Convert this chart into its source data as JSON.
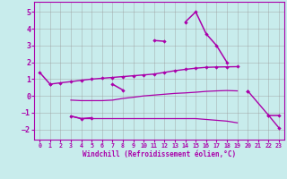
{
  "background_color": "#c8ecec",
  "line_color": "#aa00aa",
  "grid_color": "#999999",
  "xlabel": "Windchill (Refroidissement éolien,°C)",
  "xlim": [
    -0.5,
    23.5
  ],
  "ylim": [
    -2.6,
    5.6
  ],
  "yticks": [
    -2,
    -1,
    0,
    1,
    2,
    3,
    4,
    5
  ],
  "xticks": [
    0,
    1,
    2,
    3,
    4,
    5,
    6,
    7,
    8,
    9,
    10,
    11,
    12,
    13,
    14,
    15,
    16,
    17,
    18,
    19,
    20,
    21,
    22,
    23
  ],
  "curve1_segs": [
    {
      "x": [
        0,
        1
      ],
      "y": [
        1.4,
        0.7
      ]
    },
    {
      "x": [
        3,
        4,
        5
      ],
      "y": [
        -1.2,
        -1.35,
        -1.3
      ]
    },
    {
      "x": [
        7,
        8
      ],
      "y": [
        0.7,
        0.35
      ]
    },
    {
      "x": [
        11,
        12
      ],
      "y": [
        3.3,
        3.25
      ]
    },
    {
      "x": [
        14,
        15,
        16,
        17,
        18
      ],
      "y": [
        4.4,
        5.0,
        3.7,
        3.0,
        2.0
      ]
    },
    {
      "x": [
        20
      ],
      "y": [
        0.3
      ]
    },
    {
      "x": [
        22,
        23
      ],
      "y": [
        -1.15,
        -1.15
      ]
    }
  ],
  "curve2_segs": [
    {
      "x": [
        1,
        2,
        3,
        4,
        5,
        6,
        7,
        8,
        9,
        10,
        11,
        12,
        13,
        14,
        15,
        16,
        17,
        18,
        19
      ],
      "y": [
        0.7,
        0.78,
        0.85,
        0.93,
        1.0,
        1.05,
        1.1,
        1.15,
        1.2,
        1.25,
        1.3,
        1.4,
        1.5,
        1.58,
        1.65,
        1.7,
        1.72,
        1.73,
        1.74
      ]
    },
    {
      "x": [
        20,
        22,
        23
      ],
      "y": [
        0.3,
        -1.15,
        -1.9
      ]
    }
  ],
  "flat_upper_x": [
    3,
    4,
    5,
    6,
    7,
    8,
    9,
    10,
    11,
    12,
    13,
    14,
    15,
    16,
    17,
    18,
    19
  ],
  "flat_upper_y": [
    -0.25,
    -0.28,
    -0.28,
    -0.28,
    -0.25,
    -0.15,
    -0.08,
    0.0,
    0.05,
    0.1,
    0.15,
    0.18,
    0.22,
    0.27,
    0.3,
    0.32,
    0.3
  ],
  "flat_lower_x": [
    3,
    4,
    5,
    6,
    7,
    8,
    9,
    10,
    11,
    12,
    13,
    14,
    15,
    16,
    17,
    18,
    19
  ],
  "flat_lower_y": [
    -1.2,
    -1.35,
    -1.35,
    -1.35,
    -1.35,
    -1.35,
    -1.35,
    -1.35,
    -1.35,
    -1.35,
    -1.35,
    -1.35,
    -1.35,
    -1.4,
    -1.45,
    -1.5,
    -1.6
  ]
}
